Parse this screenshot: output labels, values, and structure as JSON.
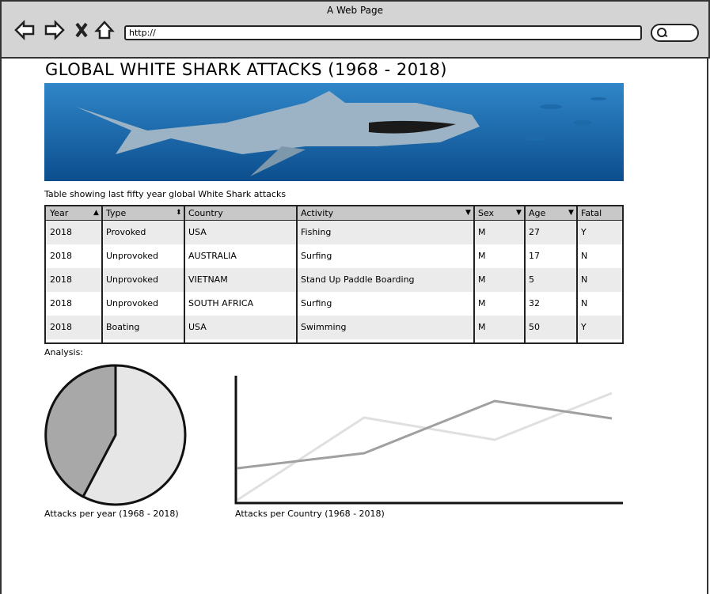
{
  "browser": {
    "title": "A Web Page",
    "url": "http://"
  },
  "header": {
    "title": "GLOBAL WHITE SHARK ATTACKS (1968 - 2018)"
  },
  "table": {
    "caption": "Table showing last fifty year global White Shark attacks",
    "headers": [
      "Year",
      "Type",
      "Country",
      "Activity",
      "Sex",
      "Age",
      "Fatal"
    ],
    "rows": [
      [
        "2018",
        "Provoked",
        "USA",
        "Fishing",
        "M",
        "27",
        "Y"
      ],
      [
        "2018",
        "Unprovoked",
        "AUSTRALIA",
        "Surfing",
        "M",
        "17",
        "N"
      ],
      [
        "2018",
        "Unprovoked",
        "VIETNAM",
        "Stand Up Paddle Boarding",
        "M",
        "5",
        "N"
      ],
      [
        "2018",
        "Unprovoked",
        "SOUTH AFRICA",
        "Surfing",
        "M",
        "32",
        "N"
      ],
      [
        "2018",
        "Boating",
        "USA",
        "Swimming",
        "M",
        "50",
        "Y"
      ]
    ]
  },
  "analysis": {
    "label": "Analysis:",
    "pie_caption": "Attacks per year (1968 - 2018)",
    "line_caption": "Attacks per Country  (1968 - 2018)"
  }
}
